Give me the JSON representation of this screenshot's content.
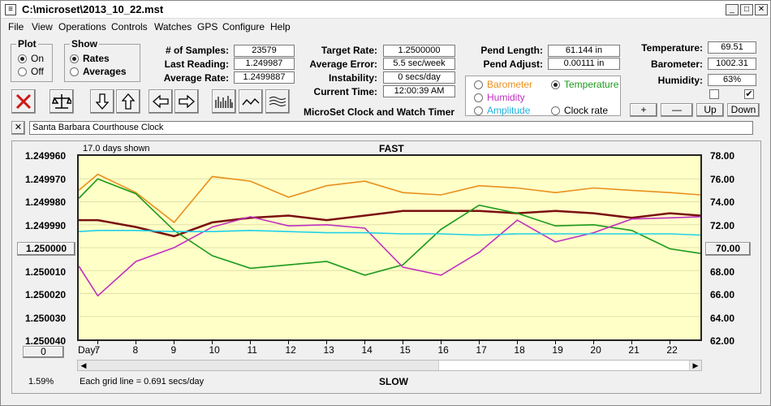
{
  "window": {
    "title": "C:\\microset\\2013_10_22.mst"
  },
  "menu": [
    "File",
    "View",
    "Operations",
    "Controls",
    "Watches",
    "GPS",
    "Configure",
    "Help"
  ],
  "plot_group": {
    "title": "Plot",
    "options": [
      "On",
      "Off"
    ],
    "selected": "On"
  },
  "show_group": {
    "title": "Show",
    "options": [
      "Rates",
      "Averages"
    ],
    "selected": "Rates"
  },
  "stats": {
    "samples_label": "# of Samples:",
    "samples": "23579",
    "last_reading_label": "Last Reading:",
    "last_reading": "1.249987",
    "average_rate_label": "Average Rate:",
    "average_rate": "1.2499887",
    "target_rate_label": "Target Rate:",
    "target_rate": "1.2500000",
    "average_error_label": "Average Error:",
    "average_error": "5.5 sec/week",
    "instability_label": "Instability:",
    "instability": "0 secs/day",
    "current_time_label": "Current Time:",
    "current_time": "12:00:39 AM",
    "subtitle": "MicroSet Clock and Watch Timer"
  },
  "pendulum": {
    "length_label": "Pend Length:",
    "length": "61.144 in",
    "adjust_label": "Pend Adjust:",
    "adjust": "0.00111 in"
  },
  "environment": {
    "temperature_label": "Temperature:",
    "temperature": "69.51",
    "barometer_label": "Barometer:",
    "barometer": "1002.31",
    "humidity_label": "Humidity:",
    "humidity": "63%"
  },
  "aux_options": [
    {
      "label": "Barometer",
      "color": "#e8901c",
      "selected": false
    },
    {
      "label": "Temperature",
      "color": "#1a9a1a",
      "selected": true
    },
    {
      "label": "Humidity",
      "color": "#c030c0",
      "selected": false
    },
    {
      "label": "Amplitude",
      "color": "#20b0e0",
      "selected": false
    },
    {
      "label": "Clock rate",
      "color": "#000000",
      "selected": false
    }
  ],
  "scale_buttons": {
    "plus": "+",
    "minus": "—",
    "up": "Up",
    "down": "Down"
  },
  "checkboxes": {
    "left_checked": false,
    "right_checked": true,
    "right_mark": "✔"
  },
  "toolbar_icons": [
    "x-icon",
    "balance-icon",
    "down-arrow-icon",
    "up-arrow-icon",
    "left-arrow-icon",
    "right-arrow-icon",
    "histogram-icon",
    "wave-icon",
    "multiwave-icon"
  ],
  "note": {
    "close": "✕",
    "text": "Santa Barbara Courthouse Clock"
  },
  "plot": {
    "days_shown": "17.0 days shown",
    "fast_label": "FAST",
    "slow_label": "SLOW",
    "percent": "1.59%",
    "grid_note": "Each grid line = 0.691 secs/day",
    "left_button": "1.250000",
    "right_button": "70.00",
    "bottom_button": "0",
    "day_label": "Day:"
  },
  "chart_data": {
    "type": "line",
    "x": [
      6.5,
      7,
      8,
      9,
      10,
      11,
      12,
      13,
      14,
      15,
      16,
      17,
      18,
      19,
      20,
      21,
      22,
      22.8
    ],
    "x_ticks": [
      "7",
      "8",
      "9",
      "10",
      "11",
      "12",
      "13",
      "14",
      "15",
      "16",
      "17",
      "18",
      "19",
      "20",
      "21",
      "22"
    ],
    "left_axis": {
      "ticks": [
        "1.249960",
        "1.249970",
        "1.249980",
        "1.249990",
        "1.250000",
        "1.250010",
        "1.250020",
        "1.250030",
        "1.250040"
      ],
      "range": [
        1.24996,
        1.25004
      ],
      "inverted": true
    },
    "right_axis": {
      "ticks": [
        "78.00",
        "76.00",
        "74.00",
        "72.00",
        "70.00",
        "68.00",
        "66.00",
        "64.00",
        "62.00"
      ],
      "range": [
        62,
        78
      ]
    },
    "series": [
      {
        "name": "Clock rate",
        "color": "#7a1010",
        "axis": "left",
        "values": [
          1.249988,
          1.249988,
          1.249991,
          1.249995,
          1.249989,
          1.249987,
          1.249986,
          1.249988,
          1.249986,
          1.249984,
          1.249984,
          1.249984,
          1.249985,
          1.249984,
          1.249985,
          1.249987,
          1.249985,
          1.249986
        ]
      },
      {
        "name": "Barometer",
        "color": "#e8901c",
        "axis": "left",
        "values": [
          1.249975,
          1.249968,
          1.249976,
          1.249989,
          1.249969,
          1.249971,
          1.249978,
          1.249973,
          1.249971,
          1.249976,
          1.249977,
          1.249973,
          1.249974,
          1.249976,
          1.249974,
          1.249975,
          1.249976,
          1.249977
        ]
      },
      {
        "name": "Temperature",
        "color": "#1a9a1a",
        "axis": "right",
        "values": [
          74.3,
          76.0,
          74.7,
          71.5,
          69.3,
          68.2,
          68.5,
          68.8,
          67.6,
          68.5,
          71.6,
          73.7,
          73.0,
          71.9,
          72.0,
          71.5,
          69.9,
          69.5
        ]
      },
      {
        "name": "Humidity",
        "color": "#c030c0",
        "axis": "right",
        "values": [
          68.4,
          65.8,
          68.8,
          70.0,
          71.8,
          72.7,
          71.9,
          72.0,
          71.7,
          68.3,
          67.6,
          69.6,
          72.4,
          70.5,
          71.3,
          72.5,
          72.6,
          72.7
        ]
      },
      {
        "name": "Amplitude",
        "color": "#20d0e8",
        "axis": "right",
        "values": [
          71.4,
          71.5,
          71.5,
          71.4,
          71.4,
          71.5,
          71.4,
          71.3,
          71.3,
          71.2,
          71.2,
          71.1,
          71.2,
          71.2,
          71.2,
          71.2,
          71.2,
          71.1
        ]
      }
    ],
    "grid": true
  }
}
